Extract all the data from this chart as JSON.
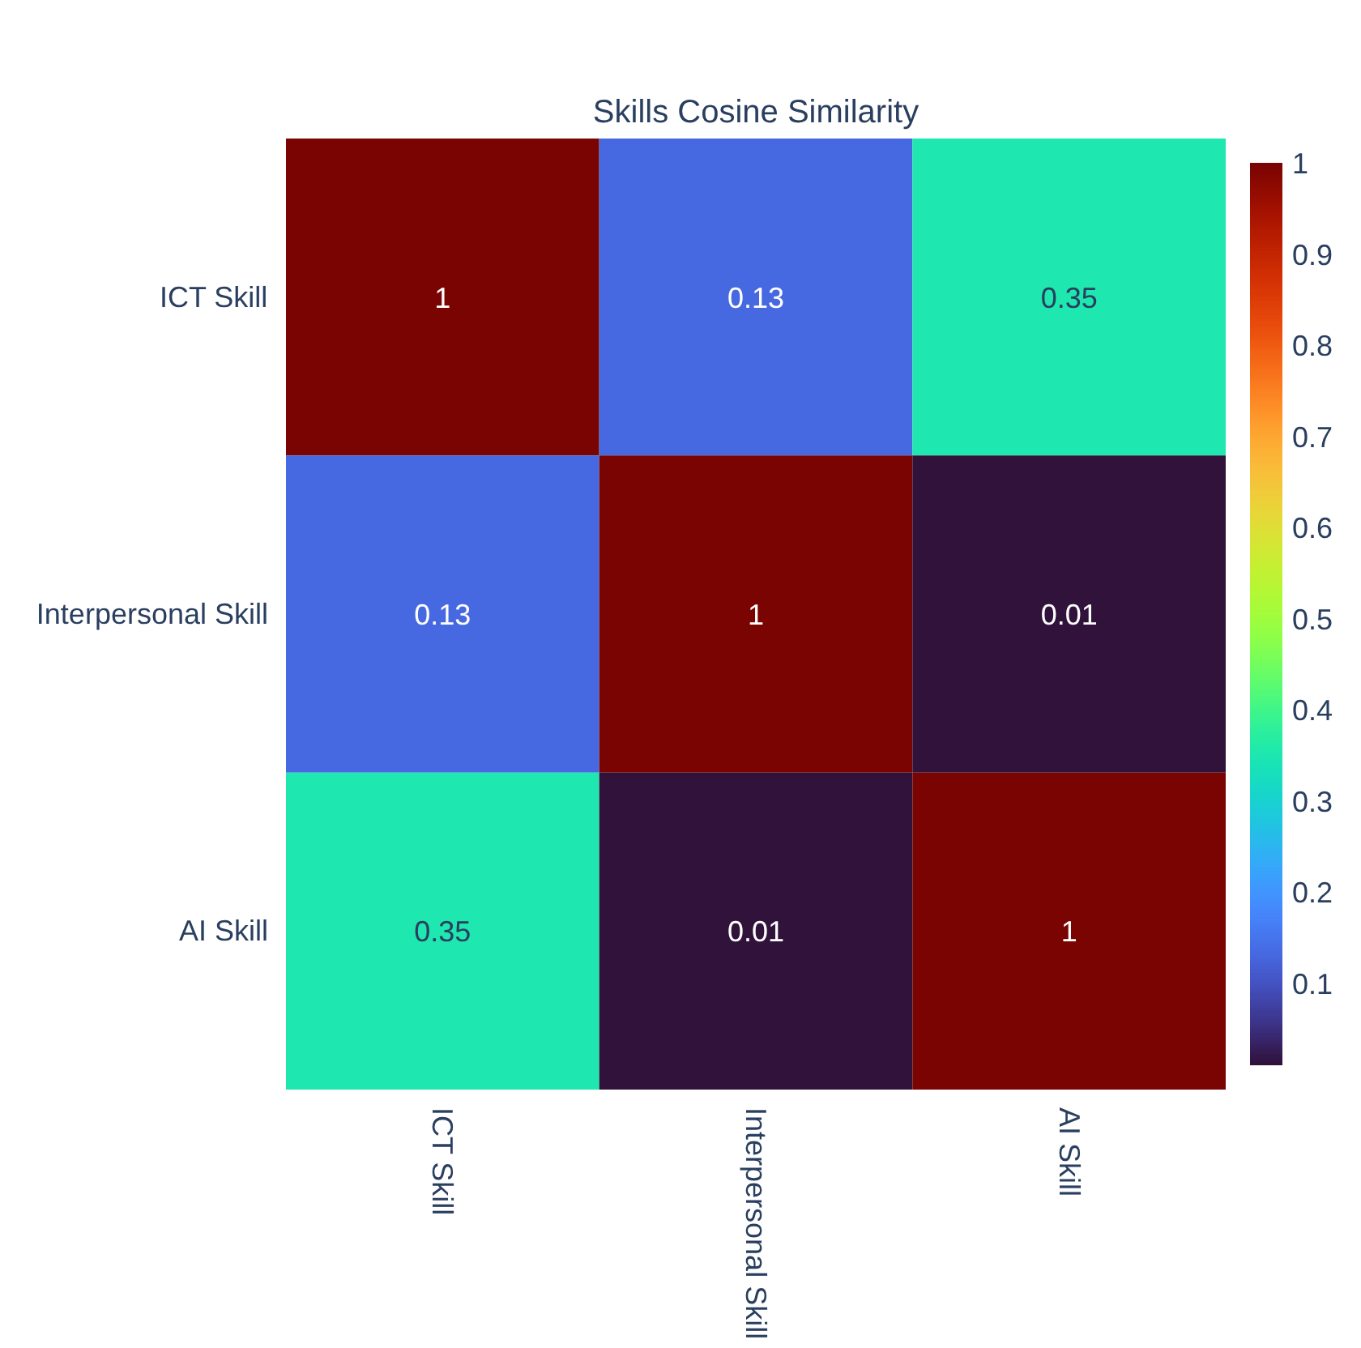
{
  "chart_data": {
    "type": "heatmap",
    "title": "Skills Cosine Similarity",
    "categories": [
      "ICT Skill",
      "Interpersonal Skill",
      "AI Skill"
    ],
    "y_categories": [
      "ICT Skill",
      "Interpersonal Skill",
      "AI Skill"
    ],
    "cells": [
      [
        1,
        0.13,
        0.35
      ],
      [
        0.13,
        1,
        0.01
      ],
      [
        0.35,
        0.01,
        1
      ]
    ],
    "data_labels": true,
    "clim": [
      0.01,
      1
    ],
    "cticks": [
      0.1,
      0.2,
      0.3,
      0.4,
      0.5,
      0.6,
      0.7,
      0.8,
      0.9,
      1
    ]
  }
}
